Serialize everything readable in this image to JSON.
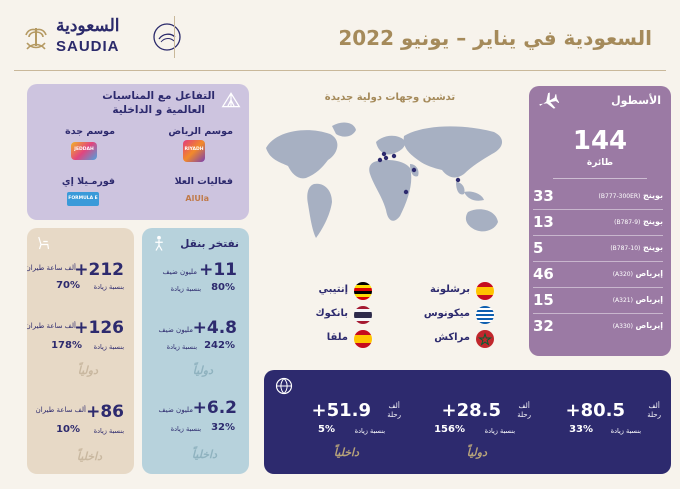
{
  "header": {
    "title": "السعودية في يناير – يونيو 2022",
    "logo_ar": "السعودية",
    "logo_en": "SAUDIA"
  },
  "fleet": {
    "title": "الأسطول",
    "total": "144",
    "total_unit": "طائرة",
    "rows": [
      {
        "count": "33",
        "name": "بوينج",
        "model": "(B777-300ER)"
      },
      {
        "count": "13",
        "name": "بوينج",
        "model": "(B787-9)"
      },
      {
        "count": "5",
        "name": "بوينج",
        "model": "(B787-10)"
      },
      {
        "count": "46",
        "name": "إيرباص",
        "model": "(A320)"
      },
      {
        "count": "15",
        "name": "إيرباص",
        "model": "(A321)"
      },
      {
        "count": "32",
        "name": "إيرباص",
        "model": "(A330)"
      }
    ]
  },
  "destinations": {
    "title": "تدشين وجهات دولية جديدة",
    "items": [
      {
        "name": "برشلونة",
        "flag": "spain"
      },
      {
        "name": "إنتيبي",
        "flag": "uganda"
      },
      {
        "name": "ميكونوس",
        "flag": "greece"
      },
      {
        "name": "بانكوك",
        "flag": "thailand"
      },
      {
        "name": "مراكش",
        "flag": "morocco"
      },
      {
        "name": "ملقا",
        "flag": "spain"
      }
    ]
  },
  "events": {
    "title_line1": "التفاعل مع المناسبات",
    "title_line2": "العالمية و الداخلية",
    "items": [
      {
        "label": "موسم الرياض",
        "logo_text": "RIYADH"
      },
      {
        "label": "موسم جدة",
        "logo_text": "JEDDAH"
      },
      {
        "label": "فعاليات العلا",
        "logo_text": "AlUla"
      },
      {
        "label": "فورمـيلا إي",
        "logo_text": "FORMULA E"
      }
    ]
  },
  "passengers": {
    "title": "نفتخر بنقل",
    "unit": "مليون ضيف",
    "inc": "بنسبة زيادة",
    "items": [
      {
        "value": "+11",
        "pct": "80%",
        "tag": ""
      },
      {
        "value": "+4.8",
        "pct": "242%",
        "tag": "دولياً"
      },
      {
        "value": "+6.2",
        "pct": "32%",
        "tag": "داخلياً"
      }
    ]
  },
  "hours": {
    "unit_line1": "ألف ساعة طيران",
    "inc": "بنسبة زيادة",
    "items": [
      {
        "value": "+212",
        "pct": "70%",
        "tag": ""
      },
      {
        "value": "+126",
        "pct": "178%",
        "tag": "دولياً"
      },
      {
        "value": "+86",
        "pct": "10%",
        "tag": "داخلياً"
      }
    ]
  },
  "flights": {
    "unit_line1": "ألف",
    "unit_line2": "رحلة",
    "inc": "بنسبة زيادة",
    "items": [
      {
        "value": "+80.5",
        "pct": "33%",
        "tag": ""
      },
      {
        "value": "+28.5",
        "pct": "156%",
        "tag": "دولياً"
      },
      {
        "value": "+51.9",
        "pct": "5%",
        "tag": "داخلياً"
      }
    ]
  },
  "colors": {
    "navy": "#2d2a6e",
    "gold": "#a58a5a",
    "mauve": "#9b7aa4",
    "lavender": "#cdc4df",
    "beige": "#e7d9c6",
    "light_blue": "#b7d2dc"
  },
  "icons": [
    "airplane-icon",
    "globe-icon",
    "tent-icon",
    "person-icon",
    "seat-icon",
    "seal-icon",
    "palm-swords-icon"
  ]
}
